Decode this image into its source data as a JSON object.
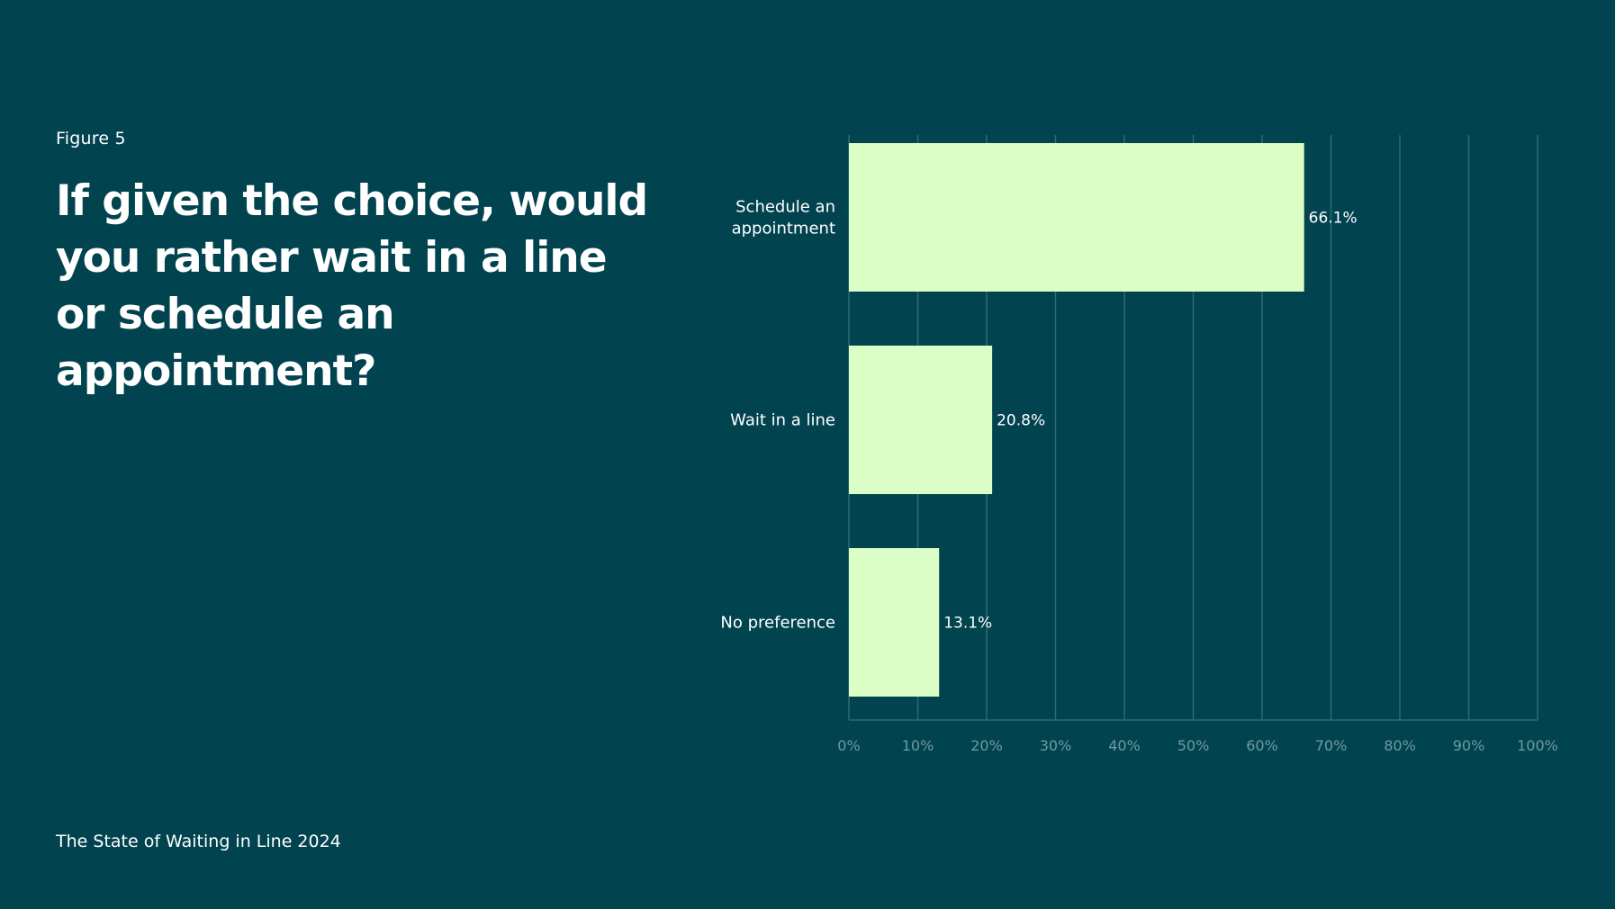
{
  "figure_label": "Figure 5",
  "question": "If given the choice, would you rather wait in a line or schedule an appointment?",
  "footer": "The State of Waiting in Line 2024",
  "colors": {
    "background": "#01434f",
    "bar": "#dbfec7",
    "grid": "#2f6b74",
    "tick_text": "#6f9aa1",
    "text": "#ffffff"
  },
  "chart_data": {
    "type": "bar",
    "orientation": "horizontal",
    "categories": [
      [
        "Schedule an",
        "appointment"
      ],
      [
        "Wait in a line"
      ],
      [
        "No preference"
      ]
    ],
    "values": [
      66.1,
      20.8,
      13.1
    ],
    "value_labels": [
      "66.1%",
      "20.8%",
      "13.1%"
    ],
    "xlim": [
      0,
      100
    ],
    "xticks": [
      0,
      10,
      20,
      30,
      40,
      50,
      60,
      70,
      80,
      90,
      100
    ],
    "xtick_labels": [
      "0%",
      "10%",
      "20%",
      "30%",
      "40%",
      "50%",
      "60%",
      "70%",
      "80%",
      "90%",
      "100%"
    ],
    "grid": true
  }
}
